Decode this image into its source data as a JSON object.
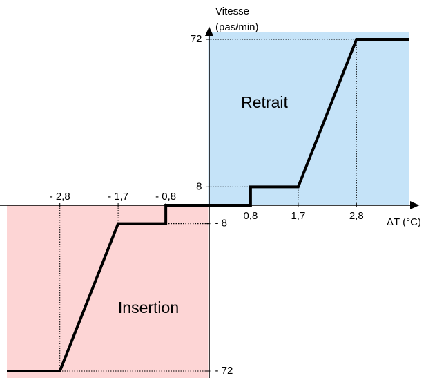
{
  "chart_data": {
    "type": "line",
    "ylabel": [
      "Vitesse",
      "(pas/min)"
    ],
    "xlabel": "ΔT (°C)",
    "x": [
      -3.8,
      -2.8,
      -1.7,
      -0.8,
      -0.8,
      0.8,
      0.8,
      1.7,
      2.8,
      3.8
    ],
    "series": [
      {
        "color": "#000000",
        "values": [
          -72,
          -72,
          -8,
          -8,
          0,
          0,
          8,
          8,
          72,
          72
        ]
      }
    ],
    "xlim": [
      -3.8,
      3.8
    ],
    "ylim": [
      -75,
      75
    ],
    "xticks": [
      {
        "value": -2.8,
        "label": "- 2,8"
      },
      {
        "value": -1.7,
        "label": "- 1,7"
      },
      {
        "value": -0.8,
        "label": "- 0,8"
      },
      {
        "value": 0.8,
        "label": "0,8"
      },
      {
        "value": 1.7,
        "label": "1,7"
      },
      {
        "value": 2.8,
        "label": "2,8"
      }
    ],
    "yticks": [
      72,
      8,
      {
        "value": -8,
        "label": "- 8"
      },
      {
        "value": -72,
        "label": "- 72"
      }
    ],
    "regions": [
      {
        "label": "Retrait",
        "color": "#c5e3f8",
        "text_color": "#1e90e0"
      },
      {
        "label": "Insertion",
        "color": "#fdd5d5",
        "text_color": "#e83a3a"
      }
    ]
  }
}
